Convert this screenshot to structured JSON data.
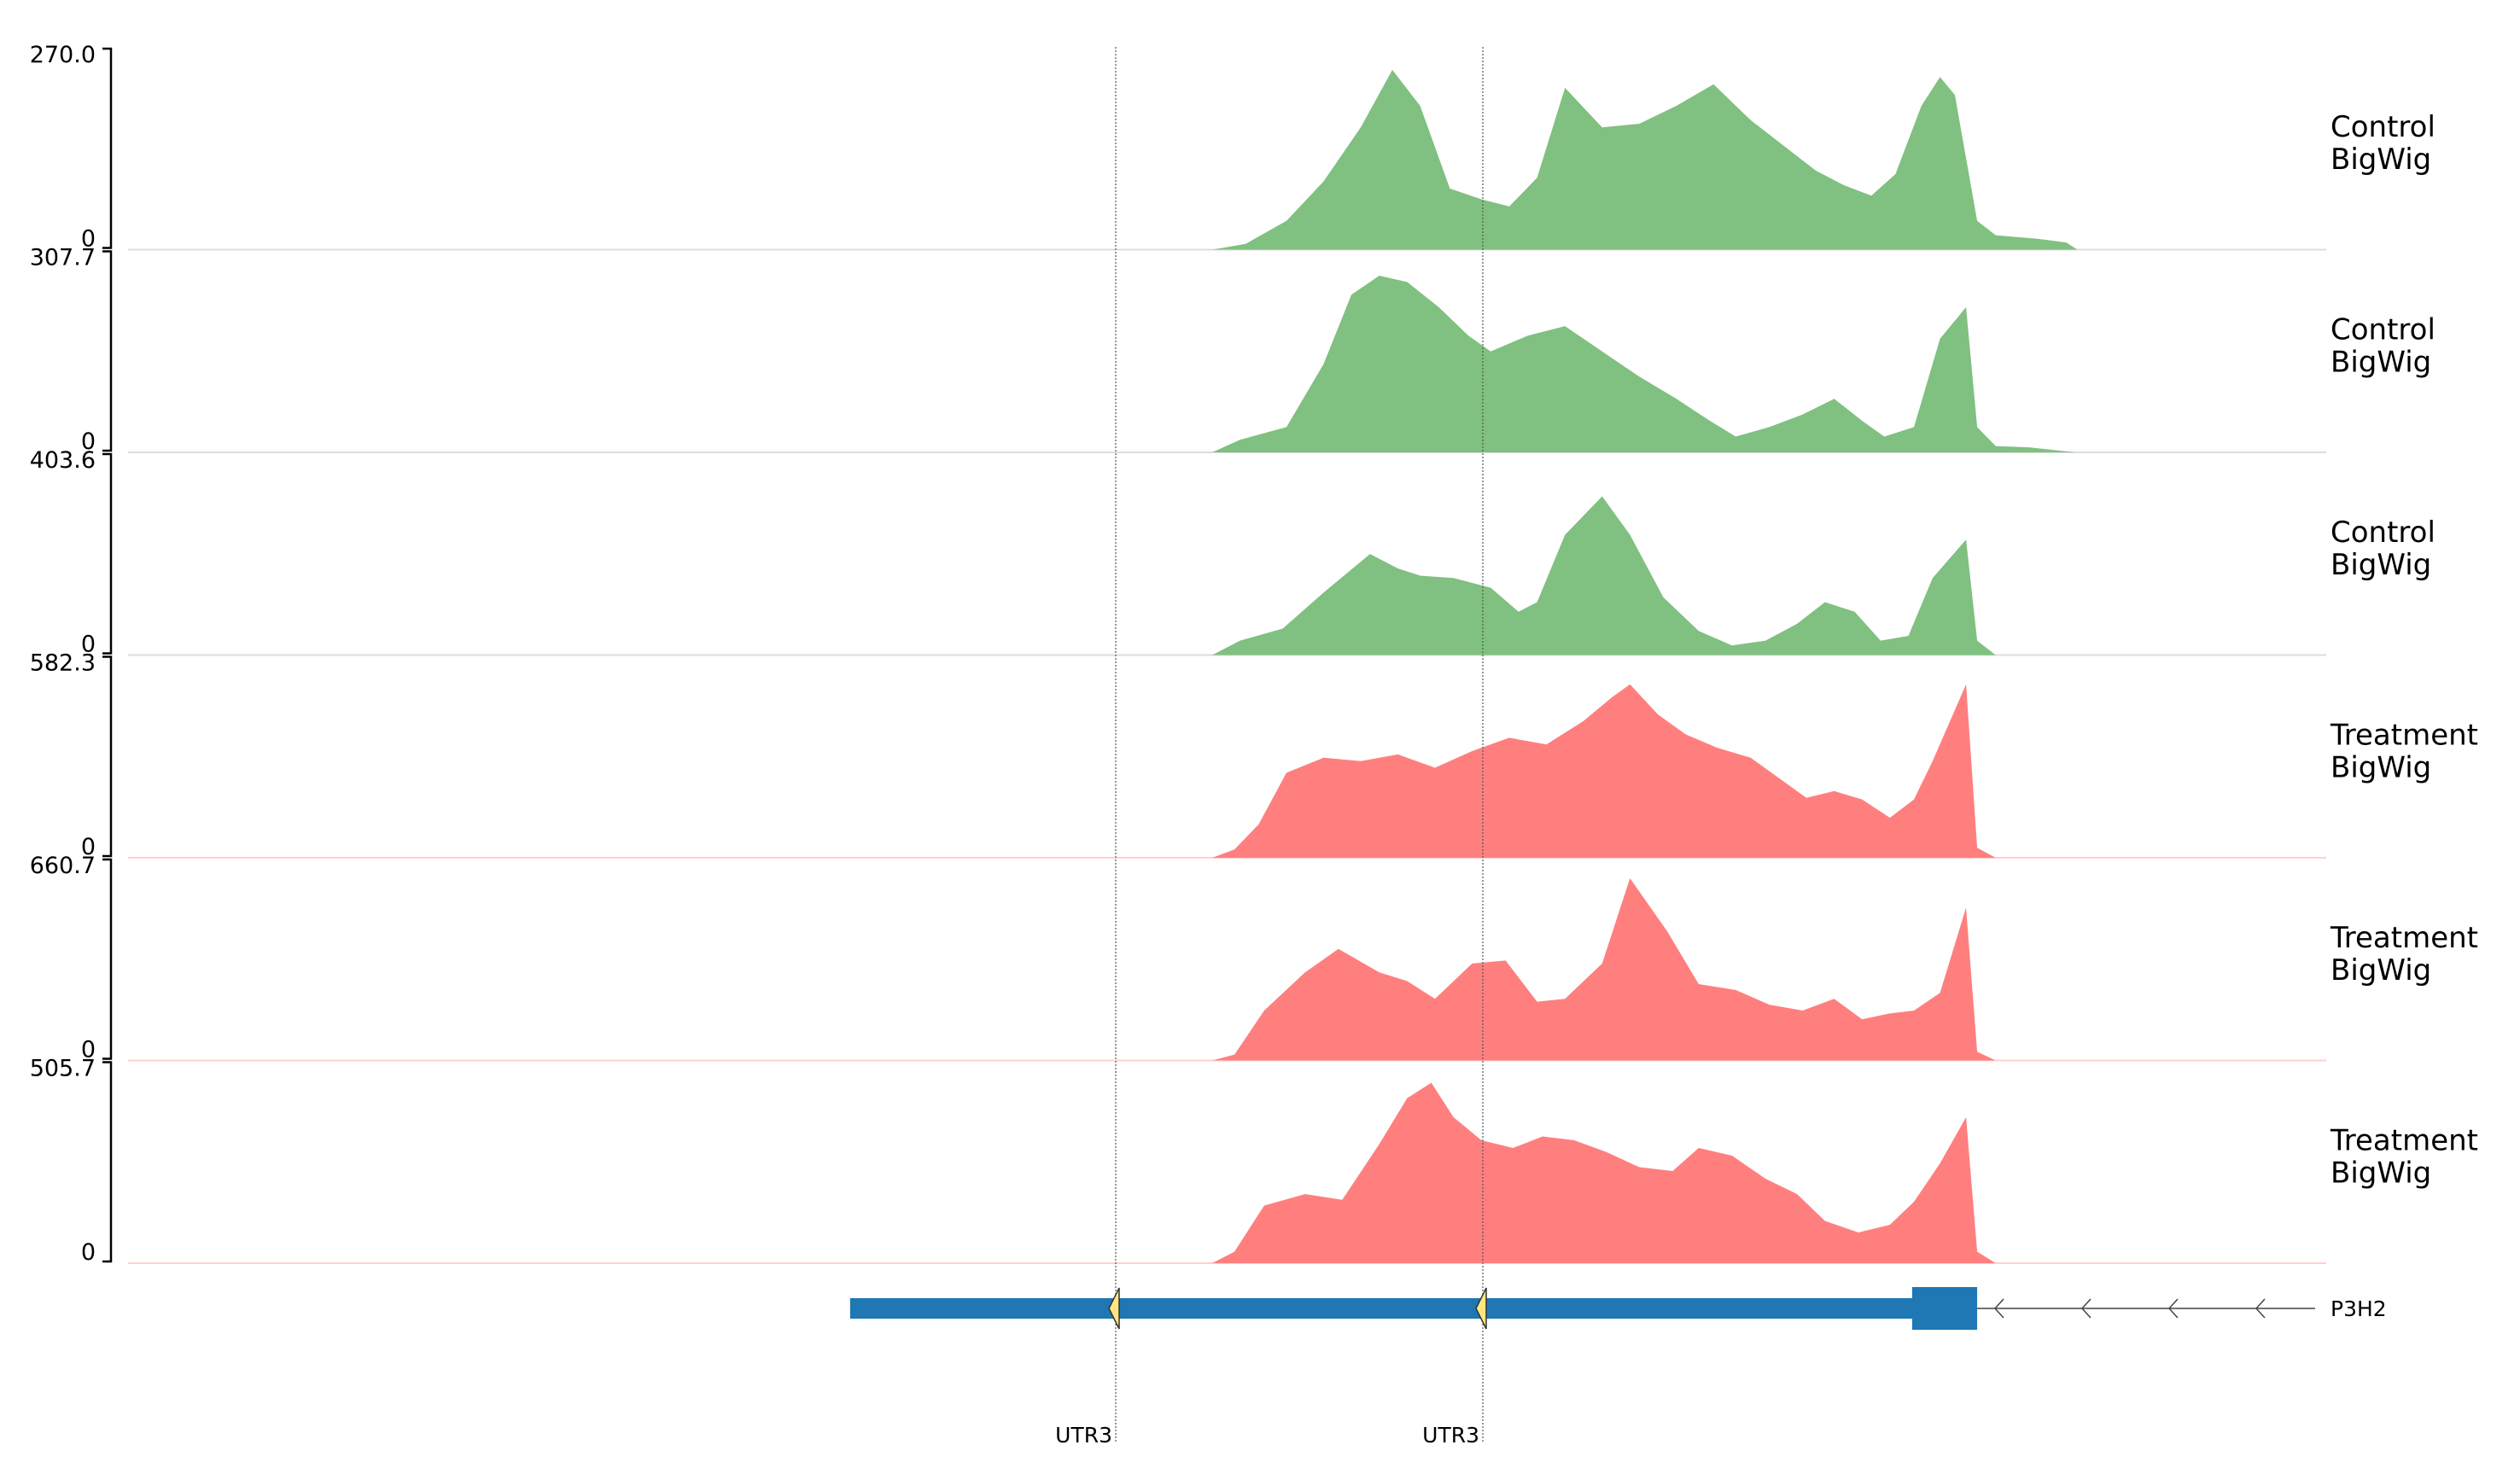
{
  "chart_data": {
    "type": "area",
    "title": "",
    "colors": {
      "control": "#80c080",
      "treatment": "#ff7f7f",
      "gene": "#1f77b4",
      "marker": "#ffe680"
    },
    "x": [
      0.0,
      0.1,
      0.2,
      0.3,
      0.4,
      0.5,
      0.6,
      0.7,
      0.8,
      0.9,
      1.0
    ],
    "tracks": [
      {
        "name": "Control\nBigWig",
        "label_lines": [
          "Control",
          "BigWig"
        ],
        "group": "control",
        "ymax_label": "270.0",
        "ymin_label": "0",
        "ymax": 270.0,
        "points": [
          [
            0,
            0
          ],
          [
            600,
            0
          ],
          [
            618,
            8
          ],
          [
            640,
            40
          ],
          [
            660,
            95
          ],
          [
            680,
            170
          ],
          [
            697,
            250
          ],
          [
            712,
            200
          ],
          [
            728,
            85
          ],
          [
            745,
            70
          ],
          [
            760,
            60
          ],
          [
            775,
            100
          ],
          [
            790,
            225
          ],
          [
            810,
            170
          ],
          [
            830,
            175
          ],
          [
            850,
            200
          ],
          [
            870,
            230
          ],
          [
            890,
            180
          ],
          [
            910,
            140
          ],
          [
            925,
            110
          ],
          [
            940,
            90
          ],
          [
            955,
            75
          ],
          [
            968,
            105
          ],
          [
            982,
            200
          ],
          [
            992,
            240
          ],
          [
            1000,
            215
          ],
          [
            1012,
            40
          ],
          [
            1022,
            20
          ],
          [
            1045,
            15
          ],
          [
            1060,
            10
          ],
          [
            1066,
            0
          ],
          [
            1200,
            0
          ]
        ]
      },
      {
        "name": "Control\nBigWig",
        "label_lines": [
          "Control",
          "BigWig"
        ],
        "group": "control",
        "ymax_label": "307.7",
        "ymin_label": "0",
        "ymax": 307.7,
        "points": [
          [
            0,
            0
          ],
          [
            600,
            0
          ],
          [
            615,
            20
          ],
          [
            640,
            40
          ],
          [
            660,
            140
          ],
          [
            675,
            250
          ],
          [
            690,
            280
          ],
          [
            705,
            270
          ],
          [
            722,
            230
          ],
          [
            738,
            185
          ],
          [
            750,
            160
          ],
          [
            770,
            185
          ],
          [
            790,
            200
          ],
          [
            810,
            160
          ],
          [
            830,
            120
          ],
          [
            850,
            85
          ],
          [
            868,
            50
          ],
          [
            882,
            25
          ],
          [
            900,
            40
          ],
          [
            918,
            60
          ],
          [
            935,
            85
          ],
          [
            950,
            50
          ],
          [
            962,
            25
          ],
          [
            978,
            40
          ],
          [
            992,
            180
          ],
          [
            1006,
            230
          ],
          [
            1012,
            40
          ],
          [
            1022,
            10
          ],
          [
            1040,
            8
          ],
          [
            1065,
            0
          ],
          [
            1200,
            0
          ]
        ]
      },
      {
        "name": "Control\nBigWig",
        "label_lines": [
          "Control",
          "BigWig"
        ],
        "group": "control",
        "ymax_label": "403.6",
        "ymin_label": "0",
        "ymax": 403.6,
        "points": [
          [
            0,
            0
          ],
          [
            600,
            0
          ],
          [
            615,
            30
          ],
          [
            638,
            55
          ],
          [
            660,
            130
          ],
          [
            685,
            210
          ],
          [
            700,
            180
          ],
          [
            712,
            165
          ],
          [
            730,
            160
          ],
          [
            750,
            140
          ],
          [
            765,
            90
          ],
          [
            775,
            110
          ],
          [
            790,
            250
          ],
          [
            810,
            330
          ],
          [
            825,
            250
          ],
          [
            843,
            120
          ],
          [
            862,
            50
          ],
          [
            880,
            20
          ],
          [
            898,
            30
          ],
          [
            915,
            65
          ],
          [
            930,
            110
          ],
          [
            946,
            90
          ],
          [
            960,
            30
          ],
          [
            975,
            40
          ],
          [
            988,
            160
          ],
          [
            1006,
            240
          ],
          [
            1012,
            30
          ],
          [
            1022,
            0
          ],
          [
            1200,
            0
          ]
        ]
      },
      {
        "name": "Treatment\nBigWig",
        "label_lines": [
          "Treatment",
          "BigWig"
        ],
        "group": "treatment",
        "ymax_label": "582.3",
        "ymin_label": "0",
        "ymax": 582.3,
        "points": [
          [
            0,
            0
          ],
          [
            600,
            0
          ],
          [
            612,
            25
          ],
          [
            625,
            100
          ],
          [
            640,
            255
          ],
          [
            660,
            300
          ],
          [
            680,
            290
          ],
          [
            700,
            310
          ],
          [
            720,
            270
          ],
          [
            740,
            320
          ],
          [
            760,
            360
          ],
          [
            780,
            340
          ],
          [
            800,
            410
          ],
          [
            815,
            480
          ],
          [
            825,
            520
          ],
          [
            840,
            430
          ],
          [
            855,
            370
          ],
          [
            872,
            330
          ],
          [
            890,
            300
          ],
          [
            905,
            240
          ],
          [
            920,
            180
          ],
          [
            935,
            200
          ],
          [
            950,
            175
          ],
          [
            965,
            120
          ],
          [
            978,
            175
          ],
          [
            988,
            290
          ],
          [
            1006,
            520
          ],
          [
            1012,
            30
          ],
          [
            1022,
            0
          ],
          [
            1200,
            0
          ]
        ]
      },
      {
        "name": "Treatment\nBigWig",
        "label_lines": [
          "Treatment",
          "BigWig"
        ],
        "group": "treatment",
        "ymax_label": "660.7",
        "ymin_label": "0",
        "ymax": 660.7,
        "points": [
          [
            0,
            0
          ],
          [
            600,
            0
          ],
          [
            612,
            20
          ],
          [
            628,
            170
          ],
          [
            650,
            300
          ],
          [
            668,
            380
          ],
          [
            690,
            300
          ],
          [
            705,
            270
          ],
          [
            720,
            210
          ],
          [
            740,
            330
          ],
          [
            758,
            340
          ],
          [
            775,
            200
          ],
          [
            790,
            210
          ],
          [
            810,
            330
          ],
          [
            825,
            620
          ],
          [
            845,
            440
          ],
          [
            862,
            260
          ],
          [
            882,
            240
          ],
          [
            900,
            190
          ],
          [
            918,
            170
          ],
          [
            935,
            210
          ],
          [
            950,
            140
          ],
          [
            965,
            160
          ],
          [
            978,
            170
          ],
          [
            992,
            230
          ],
          [
            1006,
            520
          ],
          [
            1012,
            30
          ],
          [
            1022,
            0
          ],
          [
            1200,
            0
          ]
        ]
      },
      {
        "name": "Treatment\nBigWig",
        "label_lines": [
          "Treatment",
          "BigWig"
        ],
        "group": "treatment",
        "ymax_label": "505.7",
        "ymin_label": "0",
        "ymax": 505.7,
        "points": [
          [
            0,
            0
          ],
          [
            600,
            0
          ],
          [
            612,
            30
          ],
          [
            628,
            150
          ],
          [
            650,
            180
          ],
          [
            670,
            165
          ],
          [
            690,
            310
          ],
          [
            705,
            430
          ],
          [
            718,
            470
          ],
          [
            730,
            380
          ],
          [
            745,
            320
          ],
          [
            762,
            300
          ],
          [
            778,
            330
          ],
          [
            795,
            320
          ],
          [
            812,
            290
          ],
          [
            830,
            250
          ],
          [
            848,
            240
          ],
          [
            862,
            300
          ],
          [
            880,
            280
          ],
          [
            898,
            220
          ],
          [
            915,
            180
          ],
          [
            930,
            110
          ],
          [
            948,
            80
          ],
          [
            965,
            100
          ],
          [
            978,
            160
          ],
          [
            992,
            260
          ],
          [
            1006,
            380
          ],
          [
            1012,
            30
          ],
          [
            1022,
            0
          ],
          [
            1200,
            0
          ]
        ]
      }
    ],
    "gene": {
      "name": "P3H2",
      "features": [
        "UTR3",
        "UTR3"
      ]
    }
  }
}
